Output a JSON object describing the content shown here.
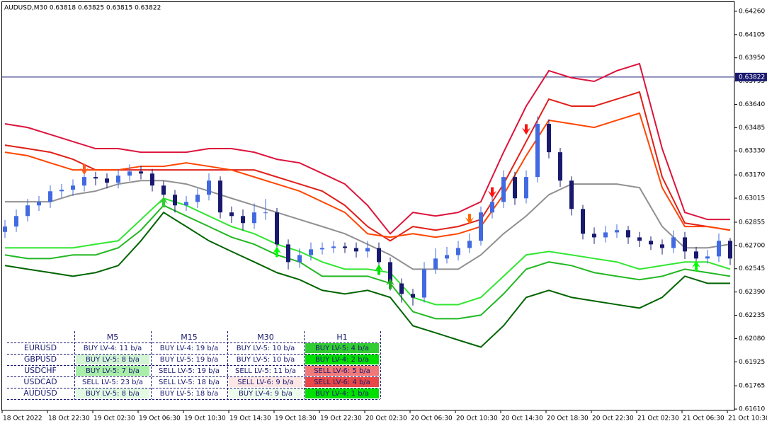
{
  "chart_data": {
    "type": "candlestick",
    "header": "AUDUSD,M30  0.63818 0.63825 0.63815 0.63822",
    "categories": [
      "18 Oct 2022",
      null,
      null,
      null,
      "18 Oct 22:30",
      null,
      null,
      null,
      "19 Oct 02:30",
      null,
      null,
      null,
      "19 Oct 06:30",
      null,
      null,
      null,
      "19 Oct 10:30",
      null,
      null,
      null,
      "19 Oct 14:30",
      null,
      null,
      null,
      "19 Oct 18:30",
      null,
      null,
      null,
      "19 Oct 22:30",
      null,
      null,
      null,
      "20 Oct 02:30",
      null,
      null,
      null,
      "20 Oct 06:30",
      null,
      null,
      null,
      "20 Oct 10:30",
      null,
      null,
      null,
      "20 Oct 14:30",
      null,
      null,
      null,
      "20 Oct 18:30",
      null,
      null,
      null,
      "20 Oct 22:30",
      null,
      null,
      null,
      "21 Oct 02:30",
      null,
      null,
      null,
      "21 Oct 06:30",
      null,
      null,
      null,
      "21 Oct 10:30"
    ],
    "open": [
      0.6279,
      0.62826,
      0.62896,
      0.62967,
      0.6299,
      0.63061,
      0.63071,
      0.63099,
      0.63156,
      0.63146,
      0.63118,
      0.63165,
      0.63193,
      0.63179,
      0.63099,
      0.63038,
      0.62967,
      0.6299,
      0.63038,
      0.63132,
      0.6292,
      0.62896,
      0.62849,
      0.6292,
      0.6292,
      0.62707,
      0.62589,
      0.62636,
      0.62674,
      0.62683,
      0.62693,
      0.62683,
      0.6266,
      0.62683,
      0.62589,
      0.62447,
      0.62377,
      0.62353,
      0.62542,
      0.62613,
      0.62636,
      0.62683,
      0.62731,
      0.6292,
      0.6299,
      0.63156,
      0.63014,
      0.63156,
      0.6351,
      0.63321,
      0.63132,
      0.62943,
      0.62778,
      0.62754,
      0.62787,
      0.62802,
      0.62754,
      0.62731,
      0.62707,
      0.62683,
      0.62754,
      0.6266,
      0.62613,
      0.62627,
      0.62731
    ],
    "high": [
      0.6287,
      0.6294,
      0.6301,
      0.6303,
      0.631,
      0.6311,
      0.6314,
      0.632,
      0.6319,
      0.6318,
      0.6321,
      0.6324,
      0.6323,
      0.6321,
      0.6313,
      0.6307,
      0.6303,
      0.6308,
      0.6318,
      0.6316,
      0.6296,
      0.6294,
      0.6298,
      0.6301,
      0.6295,
      0.6274,
      0.6268,
      0.6272,
      0.6272,
      0.6273,
      0.6272,
      0.6272,
      0.6273,
      0.6272,
      0.6262,
      0.6248,
      0.6241,
      0.6259,
      0.6268,
      0.6269,
      0.6273,
      0.6278,
      0.6296,
      0.6304,
      0.632,
      0.6319,
      0.632,
      0.6356,
      0.6354,
      0.6335,
      0.6316,
      0.6297,
      0.6282,
      0.6283,
      0.6284,
      0.6283,
      0.6279,
      0.6276,
      0.6274,
      0.628,
      0.6279,
      0.6269,
      0.6267,
      0.6278,
      0.6275
    ],
    "low": [
      0.6275,
      0.6279,
      0.6286,
      0.6293,
      0.6295,
      0.6302,
      0.6303,
      0.6306,
      0.631,
      0.6308,
      0.6308,
      0.6313,
      0.6314,
      0.6306,
      0.6299,
      0.6292,
      0.6293,
      0.6295,
      0.63,
      0.6288,
      0.6285,
      0.628,
      0.6281,
      0.6287,
      0.6266,
      0.6254,
      0.6255,
      0.626,
      0.6264,
      0.6265,
      0.6265,
      0.6262,
      0.6262,
      0.6254,
      0.624,
      0.6232,
      0.623,
      0.6232,
      0.6251,
      0.6258,
      0.626,
      0.6265,
      0.627,
      0.6288,
      0.6295,
      0.6297,
      0.6298,
      0.6312,
      0.6328,
      0.6309,
      0.629,
      0.6274,
      0.6271,
      0.6272,
      0.6275,
      0.6271,
      0.6269,
      0.6267,
      0.6264,
      0.6265,
      0.6261,
      0.6257,
      0.6258,
      0.6259,
      0.6257
    ],
    "close": [
      0.62826,
      0.62896,
      0.62967,
      0.6299,
      0.63061,
      0.63071,
      0.63099,
      0.63156,
      0.63146,
      0.63118,
      0.63165,
      0.63193,
      0.63179,
      0.63099,
      0.63038,
      0.62967,
      0.6299,
      0.63038,
      0.63132,
      0.6292,
      0.62896,
      0.62849,
      0.6292,
      0.6292,
      0.62707,
      0.62589,
      0.62636,
      0.62674,
      0.62683,
      0.62693,
      0.62683,
      0.6266,
      0.62683,
      0.62589,
      0.62447,
      0.62377,
      0.62353,
      0.62542,
      0.62613,
      0.62636,
      0.62683,
      0.62731,
      0.6292,
      0.6299,
      0.63156,
      0.63014,
      0.63156,
      0.6351,
      0.63321,
      0.63132,
      0.62943,
      0.62778,
      0.62754,
      0.62787,
      0.62802,
      0.62754,
      0.62731,
      0.62707,
      0.62683,
      0.62754,
      0.6266,
      0.62613,
      0.62627,
      0.62731,
      0.62613
    ],
    "up_color": "#4169e1",
    "down_color": "#191970",
    "bands": {
      "x": [
        0,
        2,
        4,
        6,
        8,
        10,
        12,
        14,
        16,
        18,
        20,
        22,
        24,
        26,
        28,
        30,
        32,
        34,
        36,
        38,
        40,
        42,
        44,
        46,
        48,
        50,
        52,
        54,
        56,
        58,
        60,
        62,
        64
      ],
      "series": [
        {
          "color": "#dc143c",
          "values": [
            0.6351,
            0.63486,
            0.63439,
            0.63392,
            0.63345,
            0.63345,
            0.63321,
            0.63321,
            0.63321,
            0.63345,
            0.63345,
            0.63321,
            0.63274,
            0.6325,
            0.6318,
            0.63109,
            0.62967,
            0.62778,
            0.6292,
            0.62896,
            0.6292,
            0.62991,
            0.63321,
            0.63628,
            0.63864,
            0.63817,
            0.63793,
            0.63864,
            0.63911,
            0.63345,
            0.6292,
            0.62873,
            0.62873
          ]
        },
        {
          "color": "#e0201a",
          "values": [
            0.63368,
            0.63345,
            0.63321,
            0.63274,
            0.63203,
            0.63203,
            0.63203,
            0.63203,
            0.63203,
            0.63203,
            0.63203,
            0.63203,
            0.63156,
            0.63109,
            0.63062,
            0.62967,
            0.62826,
            0.62731,
            0.62826,
            0.62802,
            0.62826,
            0.62873,
            0.63109,
            0.63392,
            0.63675,
            0.63628,
            0.63628,
            0.63675,
            0.63722,
            0.63156,
            0.62849,
            0.62826,
            0.62802
          ]
        },
        {
          "color": "#ff4500",
          "values": [
            0.63321,
            0.63298,
            0.6325,
            0.63203,
            0.63203,
            0.63203,
            0.63227,
            0.63227,
            0.6325,
            0.63227,
            0.63203,
            0.63156,
            0.63109,
            0.63062,
            0.62991,
            0.6292,
            0.62778,
            0.62755,
            0.62778,
            0.62755,
            0.62778,
            0.62826,
            0.63038,
            0.63298,
            0.63534,
            0.6351,
            0.63486,
            0.63534,
            0.63581,
            0.63085,
            0.62826,
            0.62826,
            0.62802
          ]
        },
        {
          "color": "#909090",
          "values": [
            0.62991,
            0.62991,
            0.62991,
            0.63038,
            0.63062,
            0.63109,
            0.63132,
            0.63132,
            0.63109,
            0.63062,
            0.63014,
            0.62967,
            0.6292,
            0.62873,
            0.62826,
            0.62778,
            0.62708,
            0.62637,
            0.62542,
            0.62542,
            0.62542,
            0.62637,
            0.62778,
            0.62896,
            0.63038,
            0.63109,
            0.63109,
            0.63109,
            0.63085,
            0.62826,
            0.62684,
            0.62684,
            0.62708
          ]
        },
        {
          "color": "#32e632",
          "values": [
            0.62684,
            0.62684,
            0.62684,
            0.62684,
            0.62708,
            0.62731,
            0.62873,
            0.63014,
            0.62967,
            0.62896,
            0.62826,
            0.62778,
            0.62708,
            0.6266,
            0.6259,
            0.62542,
            0.62542,
            0.62519,
            0.62354,
            0.62306,
            0.62306,
            0.62354,
            0.62495,
            0.62637,
            0.6266,
            0.62637,
            0.62613,
            0.6259,
            0.62542,
            0.62566,
            0.6259,
            0.6259,
            0.62542
          ]
        },
        {
          "color": "#22b822",
          "values": [
            0.62637,
            0.62613,
            0.62613,
            0.62637,
            0.62637,
            0.62684,
            0.62802,
            0.62967,
            0.62896,
            0.62826,
            0.62755,
            0.62708,
            0.62637,
            0.6259,
            0.62495,
            0.62495,
            0.62495,
            0.62448,
            0.62259,
            0.62212,
            0.62212,
            0.62236,
            0.62377,
            0.62542,
            0.6259,
            0.62566,
            0.62519,
            0.62495,
            0.62472,
            0.62495,
            0.62542,
            0.62519,
            0.62495
          ]
        },
        {
          "color": "#006400",
          "values": [
            0.62566,
            0.62542,
            0.62519,
            0.62495,
            0.62519,
            0.62566,
            0.62731,
            0.6292,
            0.62826,
            0.62731,
            0.6266,
            0.6259,
            0.62519,
            0.62472,
            0.62401,
            0.62377,
            0.62401,
            0.62354,
            0.62165,
            0.62118,
            0.6207,
            0.62023,
            0.62165,
            0.62354,
            0.62401,
            0.62354,
            0.6233,
            0.62306,
            0.62283,
            0.62354,
            0.62495,
            0.62448,
            0.62448
          ]
        }
      ]
    },
    "signals": [
      {
        "index": 7,
        "price": 0.63203,
        "direction": "down",
        "color": "#ff5a1e"
      },
      {
        "index": 41,
        "price": 0.62873,
        "direction": "down",
        "color": "#ff6a00"
      },
      {
        "index": 43,
        "price": 0.6305,
        "direction": "down",
        "color": "#ff1010"
      },
      {
        "index": 46,
        "price": 0.6347,
        "direction": "down",
        "color": "#ff1010"
      },
      {
        "index": 14,
        "price": 0.62991,
        "direction": "up",
        "color": "#32cd32"
      },
      {
        "index": 24,
        "price": 0.6266,
        "direction": "up",
        "color": "#00ff00"
      },
      {
        "index": 33,
        "price": 0.62542,
        "direction": "up",
        "color": "#00e000"
      },
      {
        "index": 34,
        "price": 0.62448,
        "direction": "up",
        "color": "#22aa22"
      },
      {
        "index": 61,
        "price": 0.62566,
        "direction": "up",
        "color": "#00ff00"
      }
    ],
    "current_price": {
      "value": 0.63822,
      "label": "0.63822"
    },
    "ylim": [
      0.61601,
      0.64321
    ],
    "yticks": [
      {
        "value": 0.6426,
        "label": "0.64260"
      },
      {
        "value": 0.64105,
        "label": "0.64105"
      },
      {
        "value": 0.6395,
        "label": "0.63950"
      },
      {
        "value": 0.63795,
        "label": "0.63795"
      },
      {
        "value": 0.6364,
        "label": "0.63640"
      },
      {
        "value": 0.63485,
        "label": "0.63485"
      },
      {
        "value": 0.6333,
        "label": "0.63330"
      },
      {
        "value": 0.6317,
        "label": "0.63170"
      },
      {
        "value": 0.63015,
        "label": "0.63015"
      },
      {
        "value": 0.62855,
        "label": "0.62855"
      },
      {
        "value": 0.627,
        "label": "0.62700"
      },
      {
        "value": 0.62545,
        "label": "0.62545"
      },
      {
        "value": 0.6239,
        "label": "0.62390"
      },
      {
        "value": 0.62235,
        "label": "0.62235"
      },
      {
        "value": 0.6208,
        "label": "0.62080"
      },
      {
        "value": 0.61925,
        "label": "0.61925"
      },
      {
        "value": 0.61765,
        "label": "0.61765"
      },
      {
        "value": 0.6161,
        "label": "0.61610"
      }
    ]
  },
  "dashboard": {
    "columns": [
      "M5",
      "M15",
      "M30",
      "H1"
    ],
    "rows": [
      {
        "symbol": "EURUSD",
        "cells": [
          {
            "text": "BUY LV-4: 11 b/a",
            "bg": "#ffffff"
          },
          {
            "text": "BUY LV-4: 19 b/a",
            "bg": "#ffffff"
          },
          {
            "text": "BUY LV-5: 10 b/a",
            "bg": "#ffffff"
          },
          {
            "text": "BUY LV-5: 4 b/a",
            "bg": "#32cd32"
          }
        ]
      },
      {
        "symbol": "GBPUSD",
        "cells": [
          {
            "text": "BUY LV-5: 8 b/a",
            "bg": "#d4f5d4"
          },
          {
            "text": "BUY LV-5: 19 b/a",
            "bg": "#ffffff"
          },
          {
            "text": "BUY LV-5: 10 b/a",
            "bg": "#ffffff"
          },
          {
            "text": "BUY LV-4: 2 b/a",
            "bg": "#00e000"
          }
        ]
      },
      {
        "symbol": "USDCHF",
        "cells": [
          {
            "text": "BUY LV-5: 7 b/a",
            "bg": "#a8eea8"
          },
          {
            "text": "SELL LV-5: 19 b/a",
            "bg": "#ffffff"
          },
          {
            "text": "SELL LV-5: 11 b/a",
            "bg": "#ffffff"
          },
          {
            "text": "SELL LV-6: 5 b/a",
            "bg": "#f07878"
          }
        ]
      },
      {
        "symbol": "USDCAD",
        "cells": [
          {
            "text": "SELL LV-5: 23 b/a",
            "bg": "#ffffff"
          },
          {
            "text": "SELL LV-5: 18 b/a",
            "bg": "#ffffff"
          },
          {
            "text": "SELL LV-6: 9 b/a",
            "bg": "#fde6e6"
          },
          {
            "text": "SELL LV-6: 4 b/a",
            "bg": "#e84848"
          }
        ]
      },
      {
        "symbol": "AUDUSD",
        "cells": [
          {
            "text": "BUY LV-5: 8 b/a",
            "bg": "#e2f9e2"
          },
          {
            "text": "BUY LV-5: 18 b/a",
            "bg": "#ffffff"
          },
          {
            "text": "BUY LV-4: 9 b/a",
            "bg": "#ecfbec"
          },
          {
            "text": "BUY LV-4: 1 b/a",
            "bg": "#00e000"
          }
        ]
      }
    ]
  }
}
